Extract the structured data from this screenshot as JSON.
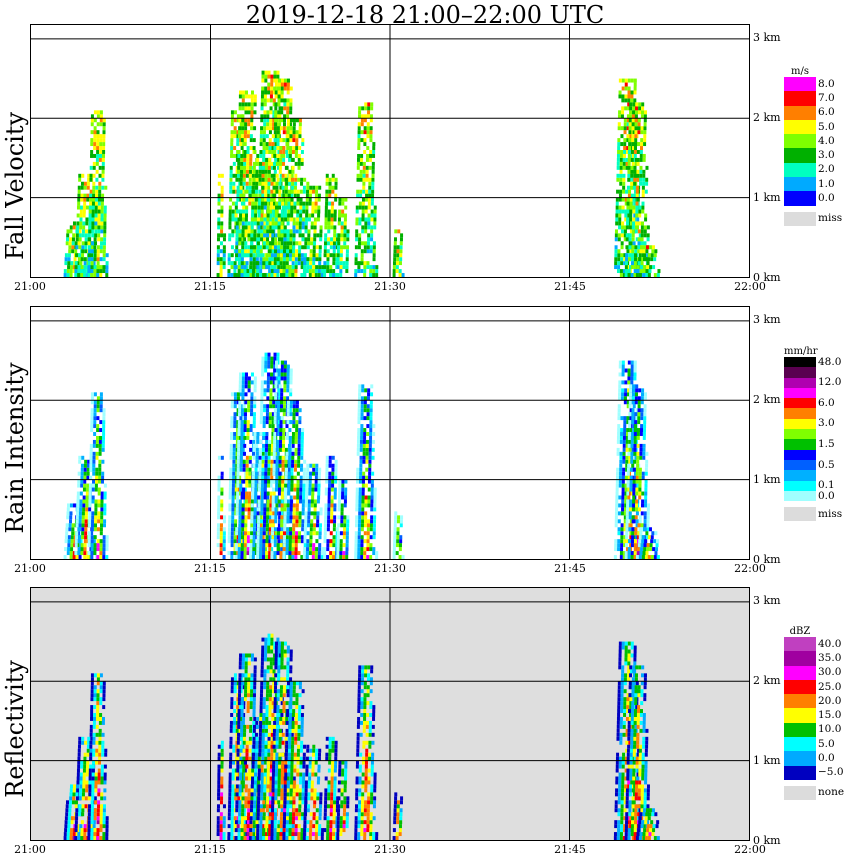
{
  "title": "2019-12-18   21:00–22:00 UTC",
  "colors": {
    "missing": "#dcdcdc",
    "plot_gray": "#dedede"
  },
  "time_ticks": [
    "21:00",
    "21:15",
    "21:30",
    "21:45",
    "22:00"
  ],
  "height_ticks": [
    "0 km",
    "1 km",
    "2 km",
    "3 km"
  ],
  "panels": [
    {
      "id": "fall",
      "ylabel": "Fall Velocity",
      "unit": "m/s",
      "missing_label": "miss",
      "levels": [
        {
          "label": "8.0",
          "color": "#ff00ff"
        },
        {
          "label": "7.0",
          "color": "#ff0000"
        },
        {
          "label": "6.0",
          "color": "#ff7f00"
        },
        {
          "label": "5.0",
          "color": "#ffff00"
        },
        {
          "label": "4.0",
          "color": "#7fff00"
        },
        {
          "label": "3.0",
          "color": "#00b000"
        },
        {
          "label": "2.0",
          "color": "#00ffc0"
        },
        {
          "label": "1.0",
          "color": "#00aaff"
        },
        {
          "label": "0.0",
          "color": "#0000ff"
        }
      ]
    },
    {
      "id": "rain",
      "ylabel": "Rain Intensity",
      "unit": "mm/hr",
      "missing_label": "miss",
      "levels": [
        {
          "label": "48.0",
          "color": "#000000"
        },
        {
          "label": "",
          "color": "#5a0050"
        },
        {
          "label": "12.0",
          "color": "#b000b0"
        },
        {
          "label": "",
          "color": "#ff00ff"
        },
        {
          "label": "6.0",
          "color": "#ff0000"
        },
        {
          "label": "",
          "color": "#ff7f00"
        },
        {
          "label": "3.0",
          "color": "#ffff00"
        },
        {
          "label": "",
          "color": "#7fff00"
        },
        {
          "label": "1.5",
          "color": "#00c000"
        },
        {
          "label": "",
          "color": "#0000ff"
        },
        {
          "label": "0.5",
          "color": "#0060ff"
        },
        {
          "label": "",
          "color": "#00b0ff"
        },
        {
          "label": "0.1",
          "color": "#00ffff"
        },
        {
          "label": "0.0",
          "color": "#a0ffff"
        }
      ]
    },
    {
      "id": "refl",
      "ylabel": "Reflectivity",
      "unit": "dBZ",
      "missing_label": "none",
      "levels": [
        {
          "label": "40.0",
          "color": "#c040c0"
        },
        {
          "label": "35.0",
          "color": "#a000a0"
        },
        {
          "label": "30.0",
          "color": "#ff00ff"
        },
        {
          "label": "25.0",
          "color": "#ff0000"
        },
        {
          "label": "20.0",
          "color": "#ff7f00"
        },
        {
          "label": "15.0",
          "color": "#ffff00"
        },
        {
          "label": "10.0",
          "color": "#00c000"
        },
        {
          "label": "5.0",
          "color": "#00ffff"
        },
        {
          "label": "0.0",
          "color": "#00aaff"
        },
        {
          "label": "−5.0",
          "color": "#0000c0"
        }
      ]
    }
  ],
  "chart_data": [
    {
      "type": "heatmap",
      "ylabel": "Fall Velocity",
      "colorbar_unit": "m/s",
      "x_range": [
        "21:00",
        "22:00"
      ],
      "y_range_km": [
        0,
        3
      ],
      "cells": [
        {
          "t": 4.5,
          "h": 0.9,
          "v": 2.0
        },
        {
          "t": 5.5,
          "h": 1.7,
          "v": 1.5
        },
        {
          "t": 16.0,
          "h": 1.0,
          "v": 3.5
        },
        {
          "t": 18.5,
          "h": 1.5,
          "v": 3.0
        },
        {
          "t": 20.0,
          "h": 2.0,
          "v": 4.0
        },
        {
          "t": 21.0,
          "h": 1.6,
          "v": 3.5
        },
        {
          "t": 22.5,
          "h": 1.2,
          "v": 3.0
        },
        {
          "t": 28.0,
          "h": 1.8,
          "v": 2.5
        },
        {
          "t": 50.0,
          "h": 2.2,
          "v": 5.0
        }
      ]
    },
    {
      "type": "heatmap",
      "ylabel": "Rain Intensity",
      "colorbar_unit": "mm/hr",
      "x_range": [
        "21:00",
        "22:00"
      ],
      "y_range_km": [
        0,
        3
      ],
      "cells": [
        {
          "t": 5.5,
          "h": 1.7,
          "v": 6.0
        },
        {
          "t": 17.5,
          "h": 0.6,
          "v": 6.0
        },
        {
          "t": 20.0,
          "h": 1.8,
          "v": 12.0
        },
        {
          "t": 28.0,
          "h": 1.6,
          "v": 3.0
        },
        {
          "t": 50.0,
          "h": 2.0,
          "v": 12.0
        },
        {
          "t": 50.5,
          "h": 0.3,
          "v": 6.0
        }
      ]
    },
    {
      "type": "heatmap",
      "ylabel": "Reflectivity",
      "colorbar_unit": "dBZ",
      "x_range": [
        "21:00",
        "22:00"
      ],
      "y_range_km": [
        0,
        3
      ],
      "cells": [
        {
          "t": 5.5,
          "h": 1.8,
          "v": 15.0
        },
        {
          "t": 17.5,
          "h": 0.8,
          "v": 25.0
        },
        {
          "t": 20.0,
          "h": 1.5,
          "v": 25.0
        },
        {
          "t": 28.0,
          "h": 1.6,
          "v": 15.0
        },
        {
          "t": 50.0,
          "h": 2.0,
          "v": 30.0
        },
        {
          "t": 50.5,
          "h": 0.3,
          "v": 25.0
        }
      ]
    }
  ]
}
